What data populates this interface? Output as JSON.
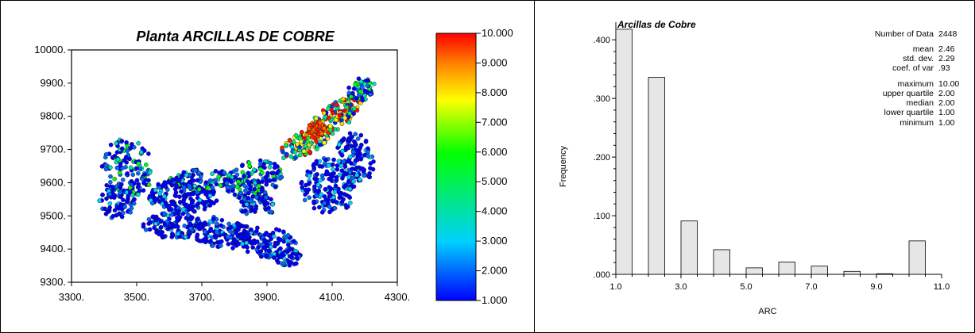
{
  "chart_data": [
    {
      "type": "scatter",
      "title": "Planta ARCILLAS DE COBRE",
      "xlabel": "",
      "ylabel": "",
      "xlim": [
        3300,
        4300
      ],
      "ylim": [
        9300,
        10000
      ],
      "x_ticks": [
        "3300.",
        "3500.",
        "3700.",
        "3900.",
        "4100.",
        "4300."
      ],
      "y_ticks": [
        "9300.",
        "9400.",
        "9500.",
        "9600.",
        "9700.",
        "9800.",
        "9900.",
        "10000."
      ],
      "colorbar": {
        "range": [
          1.0,
          10.0
        ],
        "ticks": [
          "1.000",
          "2.000",
          "3.000",
          "4.000",
          "5.000",
          "6.000",
          "7.000",
          "8.000",
          "9.000",
          "10.000"
        ],
        "colormap": "rainbow (blue to red)"
      },
      "marker": "small filled circles with dark outline",
      "point_groups": [
        {
          "x_range": [
            3390,
            3560
          ],
          "y_range": [
            9500,
            9740
          ],
          "dominant_values": "1-3, some 4-6"
        },
        {
          "x_range": [
            3560,
            3850
          ],
          "y_range": [
            9380,
            9620
          ],
          "dominant_values": "1-3"
        },
        {
          "x_range": [
            3850,
            4010
          ],
          "y_range": [
            9350,
            9520
          ],
          "dominant_values": "1-2"
        },
        {
          "x_range": [
            3780,
            3960
          ],
          "y_range": [
            9540,
            9680
          ],
          "dominant_values": "2-5"
        },
        {
          "x_range": [
            3980,
            4230
          ],
          "y_range": [
            9680,
            9930
          ],
          "dominant_values": "3-10, many 9-10 near (4050, 9760)"
        },
        {
          "x_range": [
            4060,
            4230
          ],
          "y_range": [
            9480,
            9760
          ],
          "dominant_values": "1-2"
        }
      ]
    },
    {
      "type": "bar",
      "title": "Arcillas de Cobre",
      "xlabel": "ARC",
      "ylabel": "Frequency",
      "xlim": [
        1.0,
        11.0
      ],
      "ylim": [
        0,
        0.43
      ],
      "x_ticks": [
        "1.0",
        "3.0",
        "5.0",
        "7.0",
        "9.0",
        "11.0"
      ],
      "y_ticks": [
        ".000",
        ".100",
        ".200",
        ".300",
        ".400"
      ],
      "bin_width": 0.5,
      "bins": [
        {
          "start": 1.0,
          "value": 0.418
        },
        {
          "start": 2.0,
          "value": 0.336
        },
        {
          "start": 3.0,
          "value": 0.091
        },
        {
          "start": 4.0,
          "value": 0.042
        },
        {
          "start": 5.0,
          "value": 0.011
        },
        {
          "start": 6.0,
          "value": 0.021
        },
        {
          "start": 7.0,
          "value": 0.014
        },
        {
          "start": 8.0,
          "value": 0.005
        },
        {
          "start": 9.0,
          "value": 0.001
        },
        {
          "start": 10.0,
          "value": 0.057
        }
      ],
      "bar_color": "#e6e6e6",
      "stats": [
        {
          "label": "Number of Data",
          "value": "2448"
        },
        {
          "label": "mean",
          "value": "2.46"
        },
        {
          "label": "std. dev.",
          "value": "2.29"
        },
        {
          "label": "coef. of var",
          "value": ".93"
        },
        {
          "label": "maximum",
          "value": "10.00"
        },
        {
          "label": "upper quartile",
          "value": "2.00"
        },
        {
          "label": "median",
          "value": "2.00"
        },
        {
          "label": "lower quartile",
          "value": "1.00"
        },
        {
          "label": "minimum",
          "value": "1.00"
        }
      ]
    }
  ]
}
